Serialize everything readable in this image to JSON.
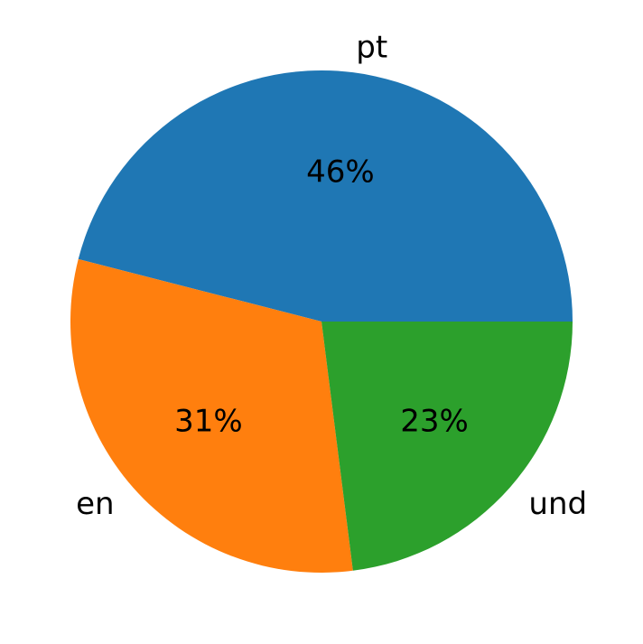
{
  "background_color": "#ffffff",
  "chart_data": {
    "type": "pie",
    "slices": [
      {
        "label": "pt",
        "value": 46,
        "pct_label": "46%",
        "color": "#1f77b4"
      },
      {
        "label": "en",
        "value": 31,
        "pct_label": "31%",
        "color": "#ff7f0e"
      },
      {
        "label": "und",
        "value": 23,
        "pct_label": "23%",
        "color": "#2ca02c"
      }
    ],
    "start_angle_deg": 0,
    "direction": "counterclockwise",
    "center": [
      356,
      356
    ],
    "radius": 278,
    "label_distance": 1.1,
    "pct_distance": 0.6,
    "text_color": "#000000",
    "legend": "none",
    "grid": "off"
  }
}
